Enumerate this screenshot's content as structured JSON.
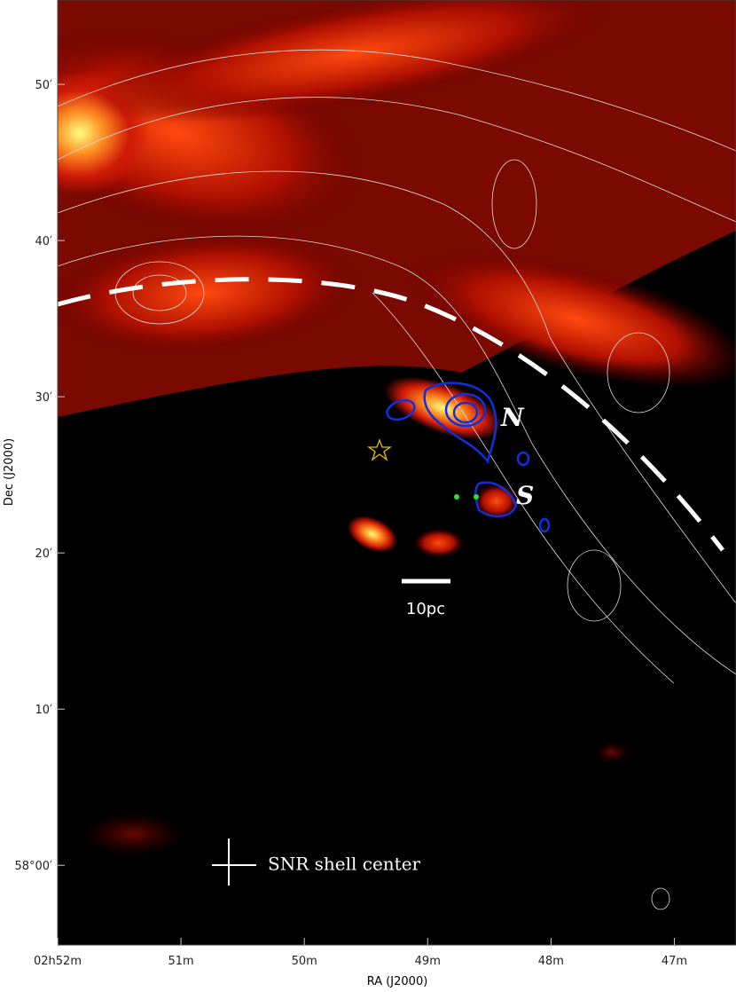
{
  "chart_data": {
    "type": "map",
    "x_label": "RA (J2000)",
    "y_label": "Dec (J2000)",
    "xlim": [
      52,
      46.5
    ],
    "ylim": [
      -5.1,
      55.4
    ],
    "xticks": [
      {
        "value": 52,
        "label": "02h52m"
      },
      {
        "value": 51,
        "label": "51m"
      },
      {
        "value": 50,
        "label": "50m"
      },
      {
        "value": 49,
        "label": "49m"
      },
      {
        "value": 48,
        "label": "48m"
      },
      {
        "value": 47,
        "label": "47m"
      }
    ],
    "yticks": [
      {
        "value": 50,
        "label": "50′"
      },
      {
        "value": 40,
        "label": "40′"
      },
      {
        "value": 30,
        "label": "30′"
      },
      {
        "value": 20,
        "label": "20′"
      },
      {
        "value": 10,
        "label": "10′"
      },
      {
        "value": 0,
        "label": "58°00′"
      }
    ],
    "annotations": [
      "N",
      "S",
      "10pc",
      "SNR shell center"
    ]
  }
}
